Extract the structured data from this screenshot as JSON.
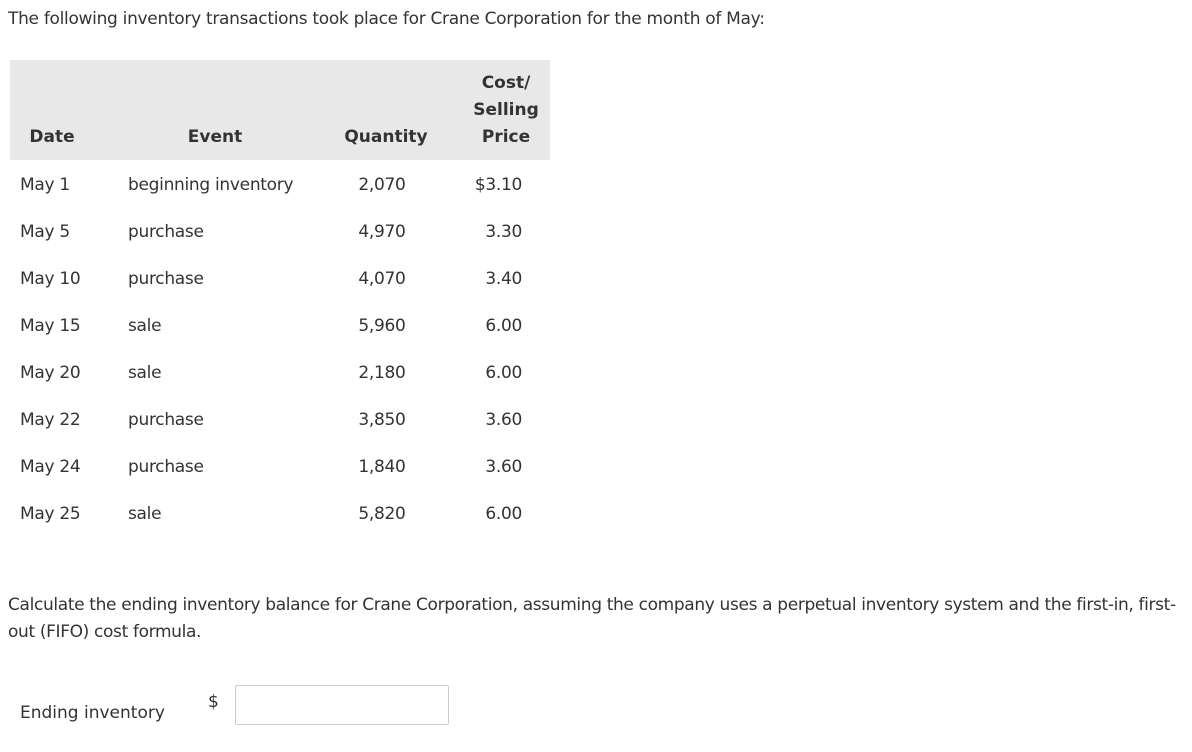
{
  "header": {
    "intro": "The following inventory transactions took place for Crane Corporation for the month of May:"
  },
  "table": {
    "columns": [
      "Date",
      "Event",
      "Quantity",
      "Cost/ Selling Price"
    ],
    "rows": [
      [
        "May 1",
        "beginning inventory",
        "2,070",
        "$3.10"
      ],
      [
        "May 5",
        "purchase",
        "4,970",
        "3.30"
      ],
      [
        "May 10",
        "purchase",
        "4,070",
        "3.40"
      ],
      [
        "May 15",
        "sale",
        "5,960",
        "6.00"
      ],
      [
        "May 20",
        "sale",
        "2,180",
        "6.00"
      ],
      [
        "May 22",
        "purchase",
        "3,850",
        "3.60"
      ],
      [
        "May 24",
        "purchase",
        "1,840",
        "3.60"
      ],
      [
        "May 25",
        "sale",
        "5,820",
        "6.00"
      ]
    ]
  },
  "question": "Calculate the ending inventory balance for Crane Corporation, assuming the company uses a perpetual inventory system and the first-in, first-out (FIFO) cost formula.",
  "answer": {
    "label": "Ending inventory",
    "currency": "$"
  }
}
